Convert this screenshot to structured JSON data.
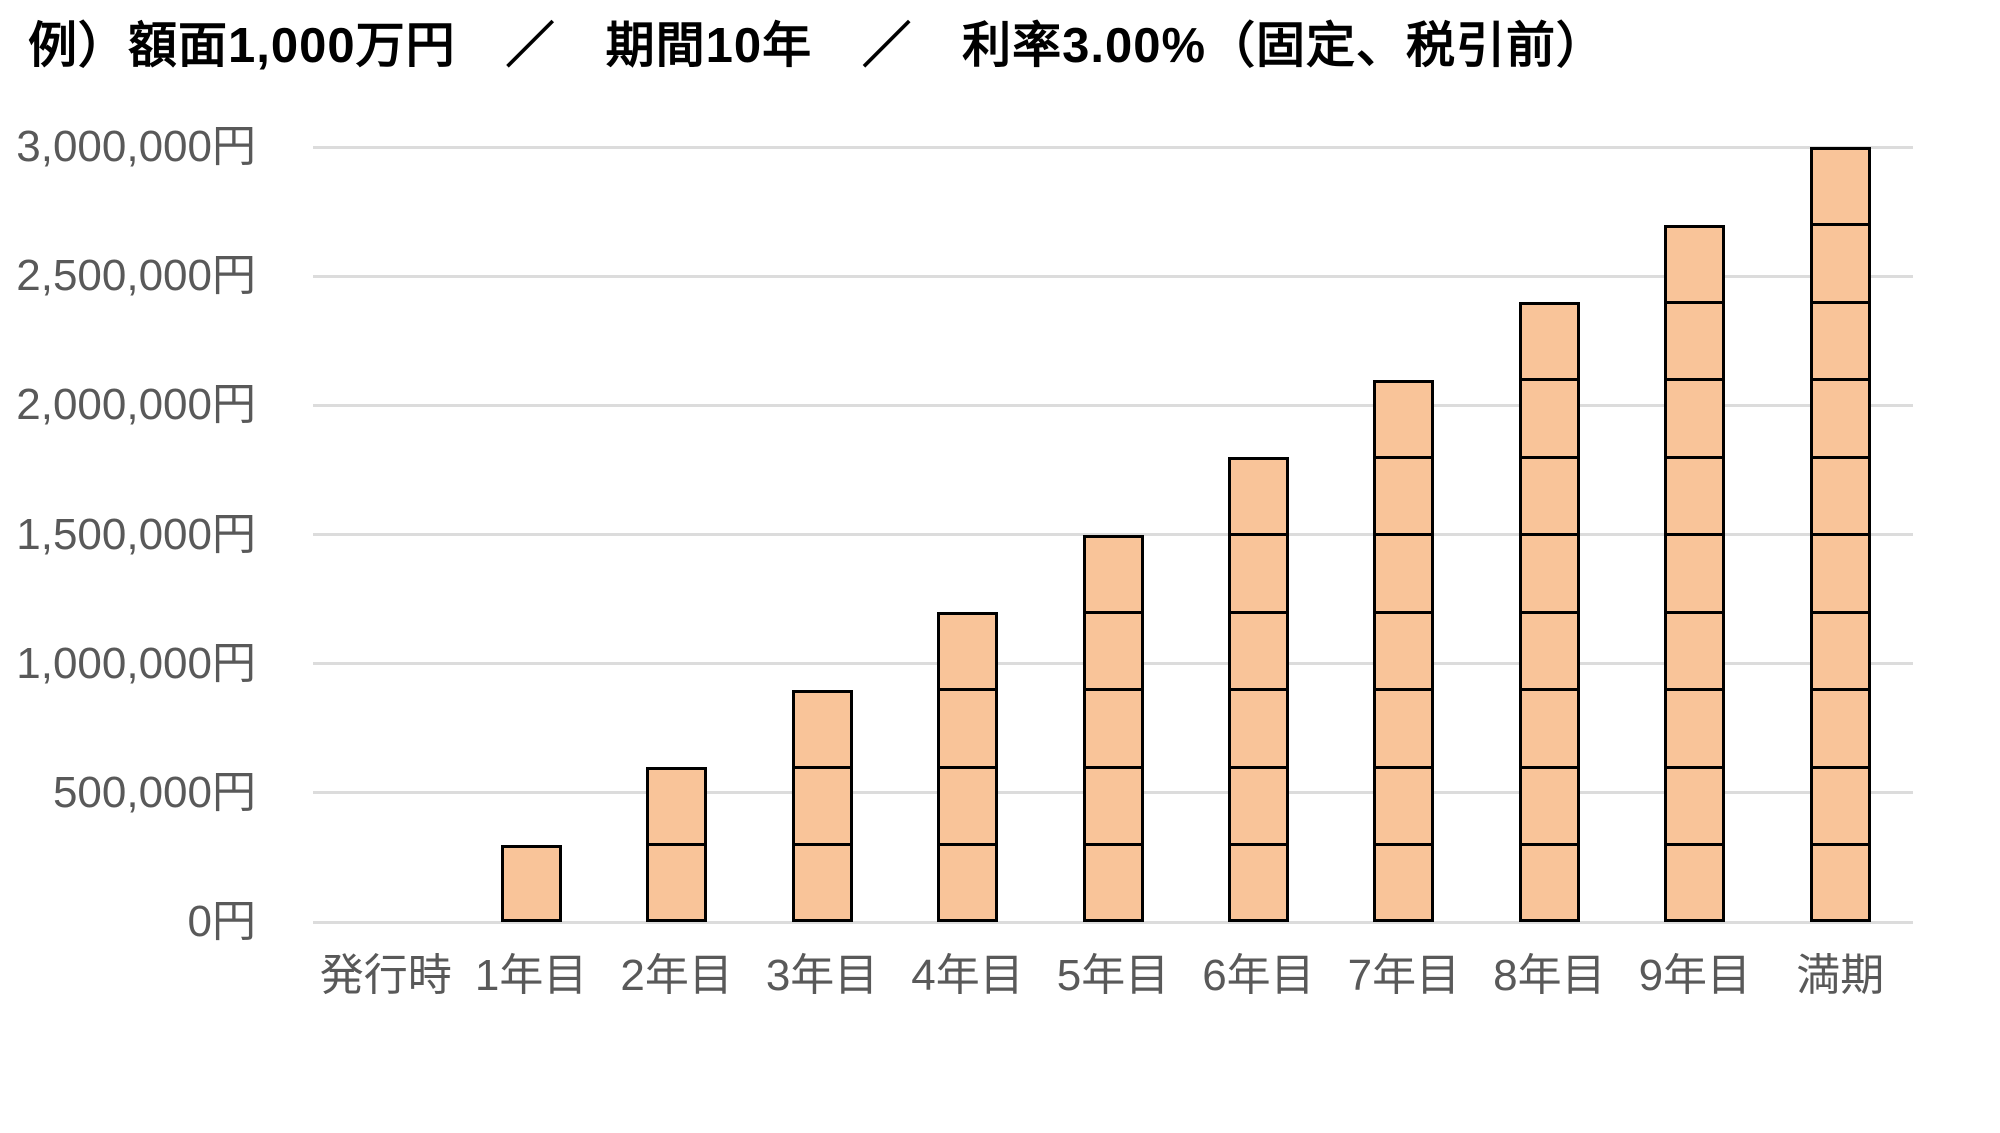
{
  "chart_data": {
    "type": "bar",
    "subtype": "stacked-equal-segments",
    "title": "例）額面1,000万円　／　期間10年　／　利率3.00%（固定、税引前）",
    "categories": [
      "発行時",
      "1年目",
      "2年目",
      "3年目",
      "4年目",
      "5年目",
      "6年目",
      "7年目",
      "8年目",
      "9年目",
      "満期"
    ],
    "values": [
      0,
      300000,
      600000,
      900000,
      1200000,
      1500000,
      1800000,
      2100000,
      2400000,
      2700000,
      3000000
    ],
    "segment_value": 300000,
    "unit": "円",
    "xlabel": "",
    "ylabel": "",
    "ylim": [
      0,
      3000000
    ],
    "y_ticks": [
      {
        "value": 0,
        "label": "0円"
      },
      {
        "value": 500000,
        "label": "500,000円"
      },
      {
        "value": 1000000,
        "label": "1,000,000円"
      },
      {
        "value": 1500000,
        "label": "1,500,000円"
      },
      {
        "value": 2000000,
        "label": "2,000,000円"
      },
      {
        "value": 2500000,
        "label": "2,500,000円"
      },
      {
        "value": 3000000,
        "label": "3,000,000円"
      }
    ],
    "grid": true,
    "legend": "none",
    "colors": {
      "bar_fill": "#F9C499",
      "bar_border": "#000000",
      "gridline": "#DCDCDC",
      "axis_label": "#595959",
      "title": "#000000"
    }
  }
}
